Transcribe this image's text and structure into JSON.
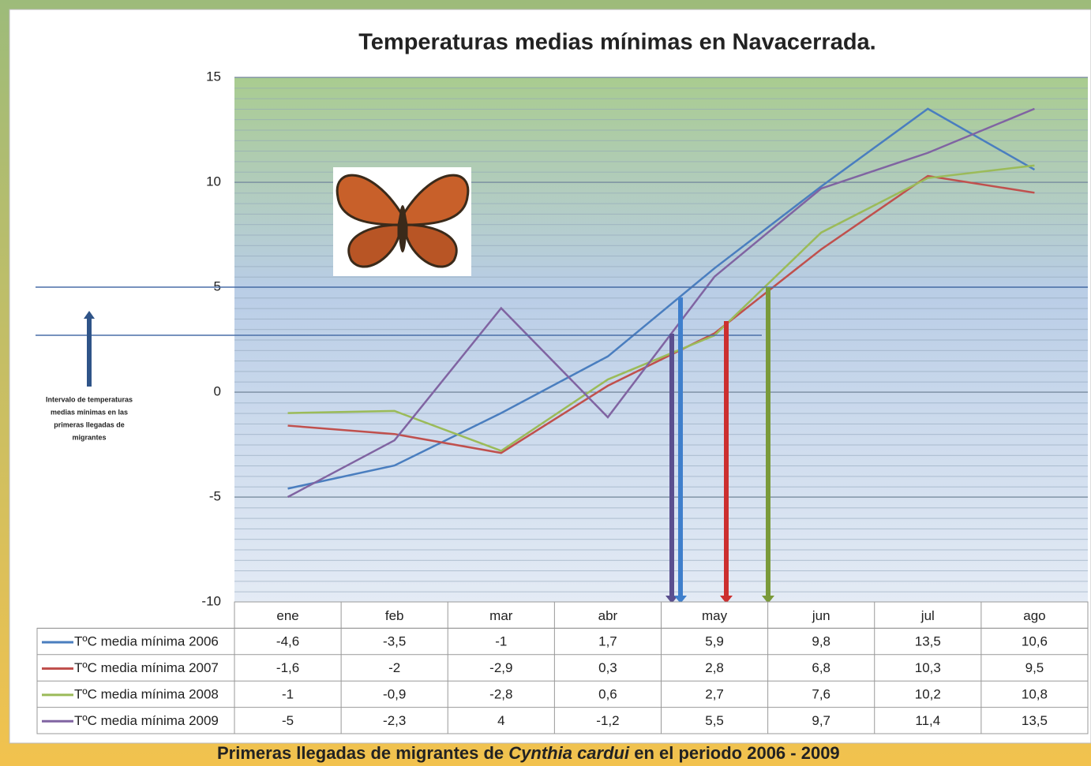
{
  "chart_data": {
    "type": "line",
    "title": "Temperaturas medias mínimas en Navacerrada.",
    "categories": [
      "ene",
      "feb",
      "mar",
      "abr",
      "may",
      "jun",
      "jul",
      "ago"
    ],
    "series": [
      {
        "name": "TºC media mínima 2006",
        "color": "#4a7ebf",
        "values": [
          -4.6,
          -3.5,
          -1,
          1.7,
          5.9,
          9.8,
          13.5,
          10.6
        ],
        "value_labels": [
          "-4,6",
          "-3,5",
          "-1",
          "1,7",
          "5,9",
          "9,8",
          "13,5",
          "10,6"
        ]
      },
      {
        "name": "TºC  media mínima 2007",
        "color": "#c0504d",
        "values": [
          -1.6,
          -2,
          -2.9,
          0.3,
          2.8,
          6.8,
          10.3,
          9.5
        ],
        "value_labels": [
          "-1,6",
          "-2",
          "-2,9",
          "0,3",
          "2,8",
          "6,8",
          "10,3",
          "9,5"
        ]
      },
      {
        "name": "TºC media mínima 2008",
        "color": "#9bbb59",
        "values": [
          -1,
          -0.9,
          -2.8,
          0.6,
          2.7,
          7.6,
          10.2,
          10.8
        ],
        "value_labels": [
          "-1",
          "-0,9",
          "-2,8",
          "0,6",
          "2,7",
          "7,6",
          "10,2",
          "10,8"
        ]
      },
      {
        "name": "TºC media mínima 2009",
        "color": "#8064a2",
        "values": [
          -5,
          -2.3,
          4,
          -1.2,
          5.5,
          9.7,
          11.4,
          13.5
        ],
        "value_labels": [
          "-5",
          "-2,3",
          "4",
          "-1,2",
          "5,5",
          "9,7",
          "11,4",
          "13,5"
        ]
      }
    ],
    "ylim": [
      -10,
      15
    ],
    "yticks": [
      -10,
      -5,
      0,
      5,
      10,
      15
    ],
    "grid": true,
    "annotation": [
      "Intervalo de temperaturas",
      "medias mínimas en las",
      "primeras llegadas de",
      "migrantes"
    ],
    "caption": [
      "Primeras llegadas de migrantes de ",
      "Cynthia cardui",
      " en el periodo 2006 - 2009"
    ]
  }
}
